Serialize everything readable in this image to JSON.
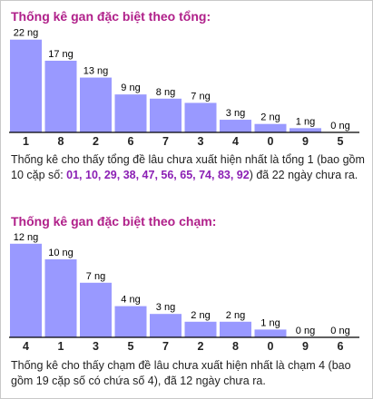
{
  "colors": {
    "title": "#b0208a",
    "bar": "#9999ff",
    "highlight": "#8b1fb4"
  },
  "sum_section": {
    "title": "Thống kê gan đặc biệt theo tổng:",
    "desc_before": "Thống kê cho thấy tổng đề lâu chưa xuất hiện nhất là tổng 1 (bao gồm 10 cặp số: ",
    "pairs": "01, 10, 29, 38, 47, 56, 65, 74, 83, 92",
    "desc_after": ") đã 22 ngày chưa ra."
  },
  "tail_section": {
    "title": "Thống kê gan đặc biệt theo chạm:",
    "desc": "Thống kê cho thấy chạm đề lâu chưa xuất hiện nhất là chạm 4 (bao gồm 19 cặp số có chứa số 4), đã 12 ngày chưa ra."
  },
  "chart_data": [
    {
      "type": "bar",
      "unit": "ng",
      "categories": [
        "1",
        "8",
        "2",
        "6",
        "7",
        "3",
        "4",
        "0",
        "9",
        "5"
      ],
      "values": [
        22,
        17,
        13,
        9,
        8,
        7,
        3,
        2,
        1,
        0
      ]
    },
    {
      "type": "bar",
      "unit": "ng",
      "categories": [
        "4",
        "1",
        "3",
        "5",
        "7",
        "2",
        "8",
        "0",
        "9",
        "6"
      ],
      "values": [
        12,
        10,
        7,
        4,
        3,
        2,
        2,
        1,
        0,
        0
      ]
    }
  ]
}
